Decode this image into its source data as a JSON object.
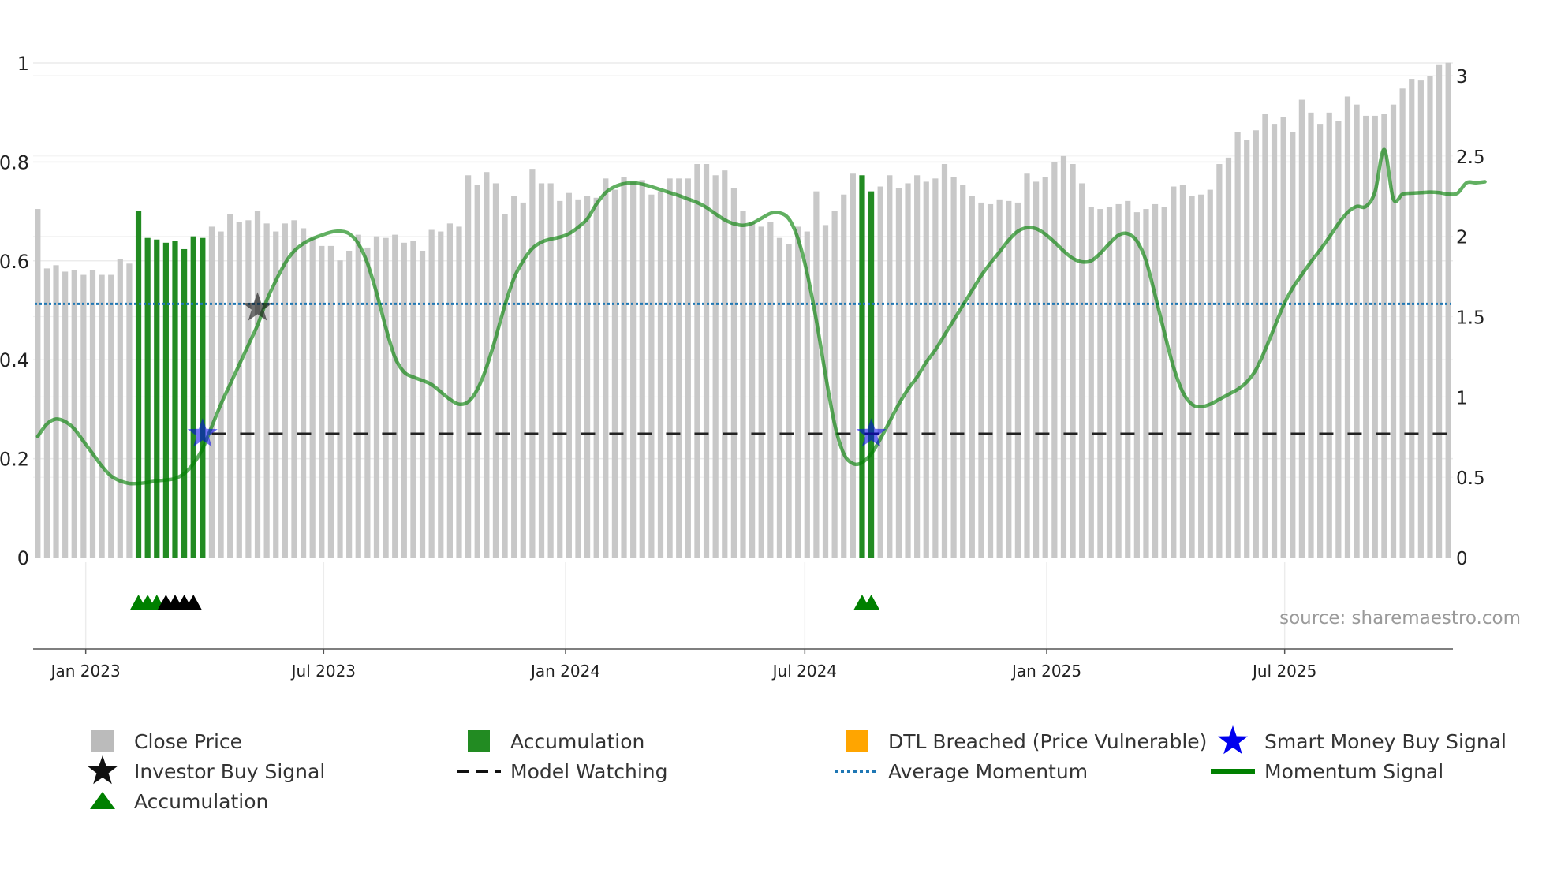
{
  "chart_data": {
    "type": "bar",
    "source": "source: sharemaestro.com",
    "left_axis": {
      "range": [
        0,
        1
      ],
      "ticks": [
        "0",
        "0.2",
        "0.4",
        "0.6",
        "0.8",
        "1"
      ]
    },
    "right_axis": {
      "range": [
        0,
        3.1
      ],
      "ticks": [
        "0",
        "0.5",
        "1",
        "1.5",
        "2",
        "2.5",
        "3"
      ]
    },
    "x_axis": {
      "range": [
        "2022-11-22",
        "2025-11-06"
      ],
      "tick_labels": [
        "Jan 2023",
        "Jul 2023",
        "Jan 2024",
        "Jul 2024",
        "Jan 2025",
        "Jul 2025"
      ]
    },
    "average_momentum": 0.513,
    "model_watching_level": 0.25,
    "close_price": [
      2.17,
      1.8,
      1.82,
      1.78,
      1.79,
      1.76,
      1.79,
      1.76,
      1.76,
      1.86,
      1.83,
      2.16,
      1.99,
      1.98,
      1.96,
      1.97,
      1.92,
      2.0,
      1.99,
      2.06,
      2.03,
      2.14,
      2.09,
      2.1,
      2.16,
      2.08,
      2.03,
      2.08,
      2.1,
      2.05,
      1.99,
      1.94,
      1.94,
      1.85,
      1.91,
      2.01,
      1.93,
      2.0,
      1.99,
      2.01,
      1.96,
      1.97,
      1.91,
      2.04,
      2.03,
      2.08,
      2.06,
      2.38,
      2.32,
      2.4,
      2.33,
      2.14,
      2.25,
      2.21,
      2.42,
      2.33,
      2.33,
      2.22,
      2.27,
      2.23,
      2.25,
      2.24,
      2.36,
      2.29,
      2.37,
      2.34,
      2.35,
      2.26,
      2.28,
      2.36,
      2.36,
      2.36,
      2.45,
      2.45,
      2.38,
      2.41,
      2.3,
      2.16,
      2.09,
      2.06,
      2.09,
      1.99,
      1.95,
      2.06,
      2.03,
      2.28,
      2.07,
      2.16,
      2.26,
      2.39,
      2.38,
      2.28,
      2.31,
      2.38,
      2.3,
      2.33,
      2.38,
      2.34,
      2.36,
      2.45,
      2.37,
      2.32,
      2.25,
      2.21,
      2.2,
      2.23,
      2.22,
      2.21,
      2.39,
      2.34,
      2.37,
      2.46,
      2.5,
      2.45,
      2.33,
      2.18,
      2.17,
      2.18,
      2.2,
      2.22,
      2.15,
      2.17,
      2.2,
      2.18,
      2.31,
      2.32,
      2.25,
      2.26,
      2.29,
      2.45,
      2.49,
      2.65,
      2.6,
      2.66,
      2.76,
      2.7,
      2.74,
      2.65,
      2.85,
      2.77,
      2.7,
      2.77,
      2.72,
      2.87,
      2.82,
      2.75,
      2.75,
      2.76,
      2.82,
      2.92,
      2.98,
      2.97,
      3.0,
      3.07,
      3.08
    ],
    "accumulation_bars": [
      {
        "from": 11,
        "to": 18
      },
      {
        "from": 90,
        "to": 91
      }
    ],
    "momentum_signal": [
      [
        0,
        0.245
      ],
      [
        1,
        0.27
      ],
      [
        2,
        0.28
      ],
      [
        3,
        0.275
      ],
      [
        4,
        0.26
      ],
      [
        5,
        0.235
      ],
      [
        6,
        0.21
      ],
      [
        7,
        0.185
      ],
      [
        8,
        0.165
      ],
      [
        9,
        0.155
      ],
      [
        10,
        0.15
      ],
      [
        11,
        0.15
      ],
      [
        12,
        0.152
      ],
      [
        13,
        0.155
      ],
      [
        14,
        0.157
      ],
      [
        15,
        0.16
      ],
      [
        16,
        0.17
      ],
      [
        17,
        0.19
      ],
      [
        18,
        0.22
      ],
      [
        19,
        0.265
      ],
      [
        20,
        0.31
      ],
      [
        21,
        0.35
      ],
      [
        22,
        0.39
      ],
      [
        23,
        0.43
      ],
      [
        24,
        0.47
      ],
      [
        25,
        0.52
      ],
      [
        26,
        0.56
      ],
      [
        27,
        0.595
      ],
      [
        28,
        0.62
      ],
      [
        29,
        0.635
      ],
      [
        30,
        0.645
      ],
      [
        31,
        0.652
      ],
      [
        32,
        0.658
      ],
      [
        33,
        0.66
      ],
      [
        34,
        0.655
      ],
      [
        35,
        0.635
      ],
      [
        36,
        0.595
      ],
      [
        37,
        0.535
      ],
      [
        38,
        0.465
      ],
      [
        39,
        0.405
      ],
      [
        40,
        0.375
      ],
      [
        41,
        0.365
      ],
      [
        42,
        0.358
      ],
      [
        43,
        0.35
      ],
      [
        44,
        0.335
      ],
      [
        45,
        0.32
      ],
      [
        46,
        0.31
      ],
      [
        47,
        0.315
      ],
      [
        48,
        0.34
      ],
      [
        49,
        0.385
      ],
      [
        50,
        0.445
      ],
      [
        51,
        0.51
      ],
      [
        52,
        0.565
      ],
      [
        53,
        0.6
      ],
      [
        54,
        0.625
      ],
      [
        55,
        0.638
      ],
      [
        56,
        0.644
      ],
      [
        57,
        0.648
      ],
      [
        58,
        0.655
      ],
      [
        59,
        0.668
      ],
      [
        60,
        0.685
      ],
      [
        61,
        0.715
      ],
      [
        62,
        0.738
      ],
      [
        63,
        0.75
      ],
      [
        64,
        0.756
      ],
      [
        65,
        0.758
      ],
      [
        66,
        0.755
      ],
      [
        67,
        0.75
      ],
      [
        68,
        0.744
      ],
      [
        69,
        0.738
      ],
      [
        70,
        0.732
      ],
      [
        71,
        0.725
      ],
      [
        72,
        0.718
      ],
      [
        73,
        0.708
      ],
      [
        74,
        0.695
      ],
      [
        75,
        0.683
      ],
      [
        76,
        0.675
      ],
      [
        77,
        0.672
      ],
      [
        78,
        0.676
      ],
      [
        79,
        0.686
      ],
      [
        80,
        0.696
      ],
      [
        81,
        0.697
      ],
      [
        82,
        0.685
      ],
      [
        83,
        0.645
      ],
      [
        84,
        0.575
      ],
      [
        85,
        0.48
      ],
      [
        86,
        0.37
      ],
      [
        87,
        0.27
      ],
      [
        88,
        0.21
      ],
      [
        89,
        0.19
      ],
      [
        90,
        0.192
      ],
      [
        91,
        0.21
      ],
      [
        92,
        0.24
      ],
      [
        93,
        0.275
      ],
      [
        94,
        0.31
      ],
      [
        95,
        0.34
      ],
      [
        96,
        0.365
      ],
      [
        97,
        0.395
      ],
      [
        98,
        0.42
      ],
      [
        99,
        0.45
      ],
      [
        100,
        0.48
      ],
      [
        101,
        0.51
      ],
      [
        102,
        0.54
      ],
      [
        103,
        0.57
      ],
      [
        104,
        0.595
      ],
      [
        105,
        0.618
      ],
      [
        106,
        0.642
      ],
      [
        107,
        0.66
      ],
      [
        108,
        0.667
      ],
      [
        109,
        0.665
      ],
      [
        110,
        0.654
      ],
      [
        111,
        0.638
      ],
      [
        112,
        0.62
      ],
      [
        113,
        0.605
      ],
      [
        114,
        0.598
      ],
      [
        115,
        0.6
      ],
      [
        116,
        0.615
      ],
      [
        117,
        0.635
      ],
      [
        118,
        0.652
      ],
      [
        119,
        0.655
      ],
      [
        120,
        0.64
      ],
      [
        121,
        0.6
      ],
      [
        122,
        0.53
      ],
      [
        123,
        0.455
      ],
      [
        124,
        0.385
      ],
      [
        125,
        0.335
      ],
      [
        126,
        0.31
      ],
      [
        127,
        0.305
      ],
      [
        128,
        0.31
      ],
      [
        129,
        0.32
      ],
      [
        130,
        0.33
      ],
      [
        131,
        0.34
      ],
      [
        132,
        0.355
      ],
      [
        133,
        0.38
      ],
      [
        134,
        0.42
      ],
      [
        135,
        0.465
      ],
      [
        136,
        0.51
      ],
      [
        137,
        0.545
      ],
      [
        138,
        0.572
      ],
      [
        139,
        0.598
      ],
      [
        140,
        0.622
      ],
      [
        141,
        0.648
      ],
      [
        142,
        0.675
      ],
      [
        143,
        0.698
      ],
      [
        144,
        0.71
      ],
      [
        145,
        0.71
      ],
      [
        146,
        0.74
      ],
      [
        147,
        0.825
      ],
      [
        148,
        0.725
      ],
      [
        149,
        0.735
      ],
      [
        150,
        0.737
      ],
      [
        151,
        0.738
      ],
      [
        152,
        0.739
      ],
      [
        153,
        0.738
      ],
      [
        154,
        0.735
      ],
      [
        155,
        0.737
      ],
      [
        156,
        0.758
      ],
      [
        157,
        0.758
      ],
      [
        158,
        0.76
      ]
    ],
    "smart_money_buy_signals": [
      {
        "index": 18,
        "value": 0.25
      },
      {
        "index": 91,
        "value": 0.25
      }
    ],
    "investor_buy_signals": [
      {
        "index": 24,
        "value": 0.505
      }
    ],
    "event_markers": [
      {
        "index": 11,
        "color": "green"
      },
      {
        "index": 12,
        "color": "green"
      },
      {
        "index": 13,
        "color": "green"
      },
      {
        "index": 14,
        "color": "black"
      },
      {
        "index": 15,
        "color": "black"
      },
      {
        "index": 16,
        "color": "black"
      },
      {
        "index": 17,
        "color": "black"
      },
      {
        "index": 90,
        "color": "green"
      },
      {
        "index": 91,
        "color": "green"
      }
    ],
    "colors": {
      "close_price": "#c8c8c8",
      "accumulation": "#228b22",
      "dtl_breached": "#ffa500",
      "smart_money": "#0000ee",
      "investor": "#111111",
      "model_watching": "#222222",
      "average_momentum": "#1f77b4",
      "momentum_signal": "#008000",
      "triangle_green": "#008000",
      "triangle_black": "#000000"
    },
    "legend": [
      {
        "label": "Close Price",
        "symbol": "square",
        "color": "#bbbbbb"
      },
      {
        "label": "Accumulation",
        "symbol": "square",
        "color": "#228b22"
      },
      {
        "label": "DTL Breached (Price Vulnerable)",
        "symbol": "square",
        "color": "#ffa500"
      },
      {
        "label": "Smart Money Buy Signal",
        "symbol": "star",
        "color": "#0000ee"
      },
      {
        "label": "Investor Buy Signal",
        "symbol": "star",
        "color": "#111111"
      },
      {
        "label": "Model Watching",
        "symbol": "dash",
        "color": "#111111"
      },
      {
        "label": "Average Momentum",
        "symbol": "dot",
        "color": "#1f77b4"
      },
      {
        "label": "Momentum Signal",
        "symbol": "line",
        "color": "#008000"
      },
      {
        "label": "Accumulation",
        "symbol": "triangle",
        "color": "#008000"
      }
    ]
  }
}
